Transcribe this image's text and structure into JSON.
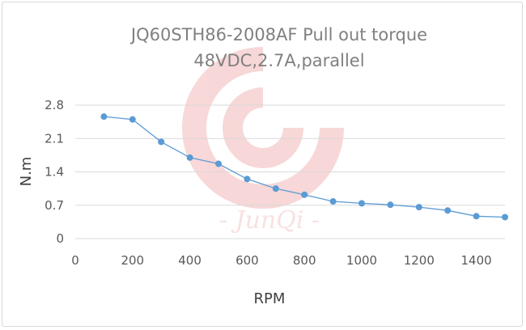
{
  "chart_data": {
    "type": "line",
    "title_line1": "JQ60STH86-2008AF Pull out torque",
    "title_line2": "48VDC,2.7A,parallel",
    "xlabel": "RPM",
    "ylabel": "N.m",
    "xlim": [
      0,
      1500
    ],
    "ylim": [
      0,
      2.8
    ],
    "x_ticks": [
      "0",
      "200",
      "400",
      "600",
      "800",
      "1000",
      "1200",
      "1400"
    ],
    "y_ticks": [
      "0",
      "0.7",
      "1.4",
      "2.1",
      "2.8"
    ],
    "grid": "horizontal",
    "legend": "none",
    "series": [
      {
        "color": "#5b9bd5",
        "x": [
          100,
          200,
          300,
          400,
          500,
          600,
          700,
          800,
          900,
          1000,
          1100,
          1200,
          1300,
          1400,
          1500
        ],
        "y": [
          2.56,
          2.5,
          2.03,
          1.7,
          1.57,
          1.25,
          1.05,
          0.92,
          0.78,
          0.74,
          0.71,
          0.66,
          0.59,
          0.47,
          0.45
        ]
      }
    ]
  },
  "watermark": {
    "text": "- JunQi -",
    "color": "#e8a0a0"
  }
}
